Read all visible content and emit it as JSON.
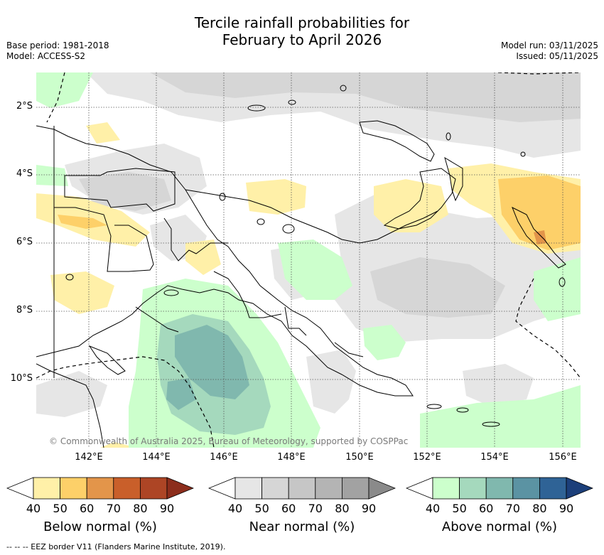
{
  "title_line1": "Tercile rainfall probabilities for",
  "title_line2": "February to April 2026",
  "base_period": "Base period: 1981-2018",
  "model": "Model: ACCESS-S2",
  "model_run": "Model run: 03/11/2025",
  "issued": "Issued: 05/11/2025",
  "lat_labels": [
    "2°S",
    "4°S",
    "6°S",
    "8°S",
    "10°S"
  ],
  "lon_labels": [
    "142°E",
    "144°E",
    "146°E",
    "148°E",
    "150°E",
    "152°E",
    "154°E",
    "156°E"
  ],
  "copyright": "© Commonwealth of Australia 2025, Bureau of Meteorology, supported by COSPPac",
  "colorbars": [
    {
      "label": "Below normal (%)",
      "ticks": [
        "40",
        "50",
        "60",
        "70",
        "80",
        "90"
      ],
      "colors": [
        "#fff0a8",
        "#fdd069",
        "#e3954a",
        "#c95f2a",
        "#ad4525",
        "#8c2d1c"
      ]
    },
    {
      "label": "Near normal (%)",
      "ticks": [
        "40",
        "50",
        "60",
        "70",
        "80",
        "90"
      ],
      "colors": [
        "#e6e6e6",
        "#d6d6d6",
        "#c6c6c6",
        "#b4b4b4",
        "#a2a2a2",
        "#8a8a8a"
      ]
    },
    {
      "label": "Above normal (%)",
      "ticks": [
        "40",
        "50",
        "60",
        "70",
        "80",
        "90"
      ],
      "colors": [
        "#ccffcc",
        "#a5d9bd",
        "#80b8ae",
        "#5b93a3",
        "#2f6396",
        "#1c3f7a"
      ]
    }
  ],
  "footnote": "--  --  -- EEZ border V11 (Flanders Marine Institute, 2019)."
}
